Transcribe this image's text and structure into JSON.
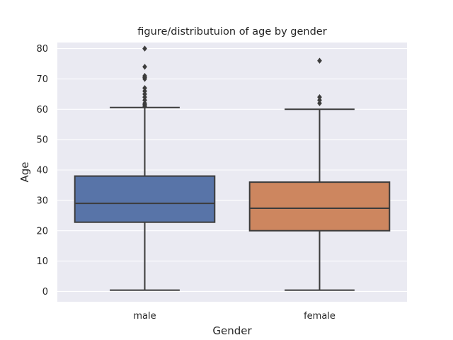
{
  "chart_data": {
    "type": "box",
    "title": "figure/distributuion of age by gender",
    "xlabel": "Gender",
    "ylabel": "Age",
    "categories": [
      "male",
      "female"
    ],
    "ylim": [
      -3.4,
      82
    ],
    "yticks": [
      0,
      10,
      20,
      30,
      40,
      50,
      60,
      70,
      80
    ],
    "grid": true,
    "colors": {
      "background": "#eaeaf2",
      "grid": "#ffffff",
      "line": "#3c3c3c",
      "male": "#5874a8",
      "female": "#cd865f"
    },
    "series": [
      {
        "category": "male",
        "whisker_low": 0.42,
        "q1": 22.8,
        "median": 29,
        "q3": 38,
        "whisker_high": 60.6,
        "outliers": [
          61,
          61.5,
          62,
          63,
          64,
          65,
          66,
          67,
          70,
          70.5,
          71,
          74,
          80
        ]
      },
      {
        "category": "female",
        "whisker_low": 0.42,
        "q1": 20,
        "median": 27.4,
        "q3": 36,
        "whisker_high": 60,
        "outliers": [
          62,
          63,
          64,
          76
        ]
      }
    ]
  }
}
